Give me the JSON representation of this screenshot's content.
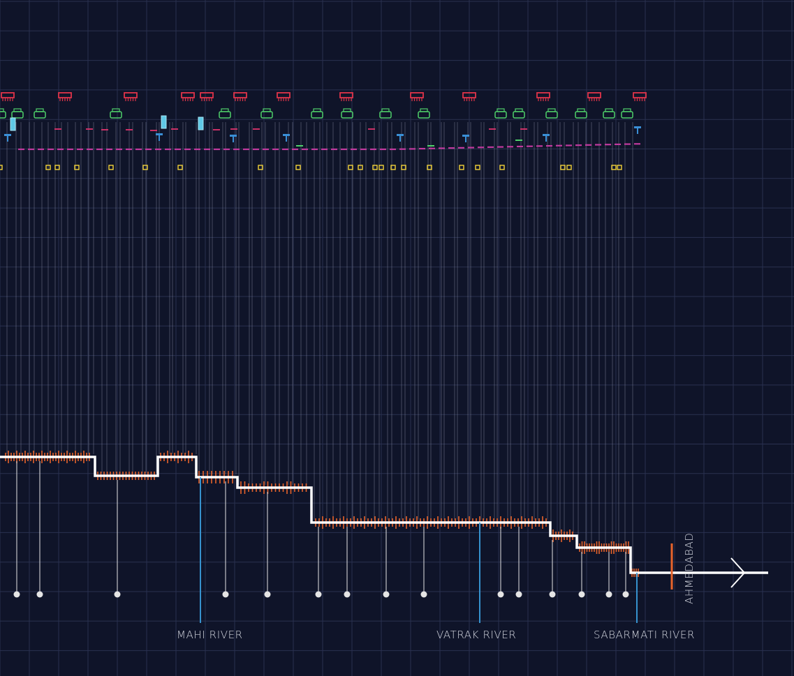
{
  "labels": {
    "rivers": [
      "MAHI RIVER",
      "VATRAK RIVER",
      "SABARMATI RIVER"
    ],
    "terminus": "AHMEDABAD"
  },
  "colors": {
    "background": "#0f1429",
    "grid": "#2a3150",
    "profile": "#ffffff",
    "ticks": "#e8632a",
    "river": "#3aa0e0",
    "station": "#e5e5e5",
    "drop_line": "#9aa0b4",
    "icon_red": "#e0344a",
    "icon_green": "#4fd06a",
    "icon_blue": "#3a8fd6",
    "icon_cyan": "#5fc9e6",
    "icon_yellow": "#f2d23a",
    "dash_magenta": "#c03a9e",
    "dash_pink": "#e0346e"
  },
  "icons": {
    "row_1": "viaduct-icon",
    "row_2": "building-icon",
    "row_3": "signal-icon",
    "row_4": "crossing-icon"
  }
}
